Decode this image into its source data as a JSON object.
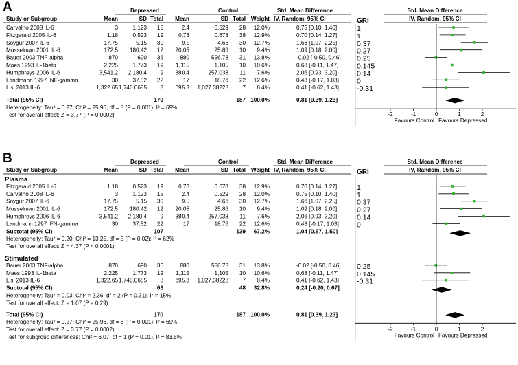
{
  "colors": {
    "ink": "#000000",
    "point": "#2db52d",
    "rule": "#9a9a9a"
  },
  "chart_data": [
    {
      "type": "forest",
      "panel_letter": "A",
      "headers": {
        "group_depressed": "Depressed",
        "group_control": "Control",
        "study": "Study or Subgroup",
        "mean1": "Mean",
        "sd1": "SD",
        "total1": "Total",
        "mean2": "Mean",
        "sd2": "SD",
        "total2": "Total",
        "weight": "Weight",
        "effect_title": "Std. Mean Difference",
        "effect_sub": "IV, Random, 95% CI",
        "gri": "GRI",
        "plot_title": "Std. Mean Difference",
        "plot_sub": "IV, Random, 95% CI"
      },
      "axis": {
        "min": -2,
        "max": 2,
        "ticks": [
          "-2",
          "-1",
          "0",
          "1",
          "2"
        ],
        "label_left": "Favours Control",
        "label_right": "Favours Depressed"
      },
      "sections": [
        {
          "title": "",
          "studies": [
            {
              "name": "Carvalho 2008 IL-6",
              "mean1": "3",
              "sd1": "1.123",
              "n1": "15",
              "mean2": "2.4",
              "sd2": "0.529",
              "n2": "28",
              "weight": "12.0%",
              "ci_text": "0.75 [0.10, 1.40]",
              "est": 0.75,
              "lo": 0.1,
              "hi": 1.4,
              "gri": "1"
            },
            {
              "name": "Fitzgerald 2005 IL-6",
              "mean1": "1.18",
              "sd1": "0.523",
              "n1": "19",
              "mean2": "0.73",
              "sd2": "0.678",
              "n2": "38",
              "weight": "12.9%",
              "ci_text": "0.70 [0.14, 1.27]",
              "est": 0.7,
              "lo": 0.14,
              "hi": 1.27,
              "gri": "1"
            },
            {
              "name": "Soygur 2007 IL-6",
              "mean1": "17.75",
              "sd1": "5.15",
              "n1": "30",
              "mean2": "9.5",
              "sd2": "4.66",
              "n2": "30",
              "weight": "12.7%",
              "ci_text": "1.66 [1.07, 2.25]",
              "est": 1.66,
              "lo": 1.07,
              "hi": 2.25,
              "gri": "0.37"
            },
            {
              "name": "Musselman 2001 IL-6",
              "mean1": "172.5",
              "sd1": "180.42",
              "n1": "12",
              "mean2": "20.05",
              "sd2": "25.86",
              "n2": "10",
              "weight": "9.4%",
              "ci_text": "1.09 [0.18, 2.00]",
              "est": 1.09,
              "lo": 0.18,
              "hi": 2.0,
              "gri": "0.27"
            },
            {
              "name": "Bauer 2003 TNF-alpha",
              "mean1": "870",
              "sd1": "690",
              "n1": "36",
              "mean2": "880",
              "sd2": "556.78",
              "n2": "31",
              "weight": "13.8%",
              "ci_text": "-0.02 [-0.50, 0.46]",
              "est": -0.02,
              "lo": -0.5,
              "hi": 0.46,
              "gri": "0.25"
            },
            {
              "name": "Maes 1993 IL-1beta",
              "mean1": "2,225",
              "sd1": "1,773",
              "n1": "19",
              "mean2": "1,115",
              "sd2": "1,105",
              "n2": "10",
              "weight": "10.6%",
              "ci_text": "0.68 [-0.11, 1.47]",
              "est": 0.68,
              "lo": -0.11,
              "hi": 1.47,
              "gri": "0.145"
            },
            {
              "name": "Humphreys 2006 IL-6",
              "mean1": "3,541.2",
              "sd1": "2,180.4",
              "n1": "9",
              "mean2": "380.4",
              "sd2": "257.038",
              "n2": "11",
              "weight": "7.6%",
              "ci_text": "2.06 [0.93, 3.20]",
              "est": 2.06,
              "lo": 0.93,
              "hi": 3.2,
              "gri": "0.14"
            },
            {
              "name": "Landmann 1997 INF-gamma",
              "mean1": "30",
              "sd1": "37.52",
              "n1": "22",
              "mean2": "17",
              "sd2": "18.76",
              "n2": "22",
              "weight": "12.6%",
              "ci_text": "0.43 [-0.17, 1.03]",
              "est": 0.43,
              "lo": -0.17,
              "hi": 1.03,
              "gri": "0"
            },
            {
              "name": "Lisi 2013 IL-6",
              "mean1": "1,322.65",
              "sd1": "1,740.0685",
              "n1": "8",
              "mean2": "695.3",
              "sd2": "1,027.38228",
              "n2": "7",
              "weight": "8.4%",
              "ci_text": "0.41 [-0.62, 1.43]",
              "est": 0.41,
              "lo": -0.62,
              "hi": 1.43,
              "gri": "-0.31"
            }
          ]
        }
      ],
      "total": {
        "label": "Total (95% CI)",
        "n1": "170",
        "n2": "187",
        "weight": "100.0%",
        "ci_text": "0.81 [0.39, 1.23]",
        "est": 0.81,
        "lo": 0.39,
        "hi": 1.23,
        "heterogeneity": "Heterogeneity: Tau² = 0.27; Chi² = 25.96, df = 8 (P = 0.001); I² = 69%",
        "overall": "Test for overall effect: Z = 3.77 (P = 0.0002)"
      },
      "subgroup_test": ""
    },
    {
      "type": "forest",
      "panel_letter": "B",
      "headers": {
        "group_depressed": "Depressed",
        "group_control": "Control",
        "study": "Study or Subgroup",
        "mean1": "Mean",
        "sd1": "SD",
        "total1": "Total",
        "mean2": "Mean",
        "sd2": "SD",
        "total2": "Total",
        "weight": "Weight",
        "effect_title": "Std. Mean Difference",
        "effect_sub": "IV, Random, 95% CI",
        "gri": "GRI",
        "plot_title": "Std. Mean Difference",
        "plot_sub": "IV, Random, 95% CI"
      },
      "axis": {
        "min": -2,
        "max": 2,
        "ticks": [
          "-2",
          "-1",
          "0",
          "1",
          "2"
        ],
        "label_left": "Favours Control",
        "label_right": "Favours Depressed"
      },
      "sections": [
        {
          "title": "Plasma",
          "studies": [
            {
              "name": "Fitzgerald 2005 IL-6",
              "mean1": "1.18",
              "sd1": "0.523",
              "n1": "19",
              "mean2": "0.73",
              "sd2": "0.678",
              "n2": "38",
              "weight": "12.9%",
              "ci_text": "0.70 [0.14, 1.27]",
              "est": 0.7,
              "lo": 0.14,
              "hi": 1.27,
              "gri": "1"
            },
            {
              "name": "Carvalho 2008 IL-6",
              "mean1": "3",
              "sd1": "1.123",
              "n1": "15",
              "mean2": "2.4",
              "sd2": "0.529",
              "n2": "28",
              "weight": "12.0%",
              "ci_text": "0.75 [0.10, 1.40]",
              "est": 0.75,
              "lo": 0.1,
              "hi": 1.4,
              "gri": "1"
            },
            {
              "name": "Soygur 2007 IL-6",
              "mean1": "17.75",
              "sd1": "5.15",
              "n1": "30",
              "mean2": "9.5",
              "sd2": "4.66",
              "n2": "30",
              "weight": "12.7%",
              "ci_text": "1.66 [1.07, 2.25]",
              "est": 1.66,
              "lo": 1.07,
              "hi": 2.25,
              "gri": "0.37"
            },
            {
              "name": "Musselman 2001 IL-6",
              "mean1": "172.5",
              "sd1": "180.42",
              "n1": "12",
              "mean2": "20.05",
              "sd2": "25.86",
              "n2": "10",
              "weight": "9.4%",
              "ci_text": "1.09 [0.18, 2.00]",
              "est": 1.09,
              "lo": 0.18,
              "hi": 2.0,
              "gri": "0.27"
            },
            {
              "name": "Humphreys 2006 IL-6",
              "mean1": "3,541.2",
              "sd1": "2,180.4",
              "n1": "9",
              "mean2": "380.4",
              "sd2": "257.038",
              "n2": "11",
              "weight": "7.6%",
              "ci_text": "2.06 [0.93, 3.20]",
              "est": 2.06,
              "lo": 0.93,
              "hi": 3.2,
              "gri": "0.14"
            },
            {
              "name": "Landmann 1997 IFN-gamma",
              "mean1": "30",
              "sd1": "37.52",
              "n1": "22",
              "mean2": "17",
              "sd2": "18.76",
              "n2": "22",
              "weight": "12.6%",
              "ci_text": "0.43 [-0.17, 1.03]",
              "est": 0.43,
              "lo": -0.17,
              "hi": 1.03,
              "gri": "0"
            }
          ],
          "subtotal": {
            "label": "Subtotal (95% CI)",
            "n1": "107",
            "n2": "139",
            "weight": "67.2%",
            "ci_text": "1.04 [0.57, 1.50]",
            "est": 1.04,
            "lo": 0.57,
            "hi": 1.5,
            "heterogeneity": "Heterogeneity: Tau² = 0.20; Chi² = 13.25, df = 5 (P = 0.02); I² = 62%",
            "overall": "Test for overall effect: Z = 4.37 (P < 0.0001)"
          }
        },
        {
          "title": "Stimulated",
          "studies": [
            {
              "name": "Bauer 2003 TNF-alpha",
              "mean1": "870",
              "sd1": "690",
              "n1": "36",
              "mean2": "880",
              "sd2": "556.78",
              "n2": "31",
              "weight": "13.8%",
              "ci_text": "-0.02 [-0.50, 0.46]",
              "est": -0.02,
              "lo": -0.5,
              "hi": 0.46,
              "gri": "0.25"
            },
            {
              "name": "Maes 1993 IL-1beta",
              "mean1": "2,225",
              "sd1": "1,773",
              "n1": "19",
              "mean2": "1,115",
              "sd2": "1,105",
              "n2": "10",
              "weight": "10.6%",
              "ci_text": "0.68 [-0.11, 1.47]",
              "est": 0.68,
              "lo": -0.11,
              "hi": 1.47,
              "gri": "0.145"
            },
            {
              "name": "Lisi 2013 IL-6",
              "mean1": "1,322.65",
              "sd1": "1,740.0685",
              "n1": "8",
              "mean2": "695.3",
              "sd2": "1,027.38228",
              "n2": "7",
              "weight": "8.4%",
              "ci_text": "0.41 [-0.62, 1.43]",
              "est": 0.41,
              "lo": -0.62,
              "hi": 1.43,
              "gri": "-0.31"
            }
          ],
          "subtotal": {
            "label": "Subtotal (95% CI)",
            "n1": "63",
            "n2": "48",
            "weight": "32.8%",
            "ci_text": "0.24 [-0.20, 0.67]",
            "est": 0.24,
            "lo": -0.2,
            "hi": 0.67,
            "heterogeneity": "Heterogeneity: Tau² = 0.03; Chi² = 2.36, df = 2 (P = 0.31); I² = 15%",
            "overall": "Test for overall effect: Z = 1.07 (P = 0.29)"
          }
        }
      ],
      "total": {
        "label": "Total (95% CI)",
        "n1": "170",
        "n2": "187",
        "weight": "100.0%",
        "ci_text": "0.81 [0.39, 1.23]",
        "est": 0.81,
        "lo": 0.39,
        "hi": 1.23,
        "heterogeneity": "Heterogeneity: Tau² = 0.27; Chi² = 25.96, df = 8 (P = 0.001); I² = 69%",
        "overall": "Test for overall effect: Z = 3.77 (P = 0.0002)"
      },
      "subgroup_test": "Test for subgroup differences: Chi² = 6.07, df = 1 (P = 0.01), I² = 83.5%"
    }
  ]
}
